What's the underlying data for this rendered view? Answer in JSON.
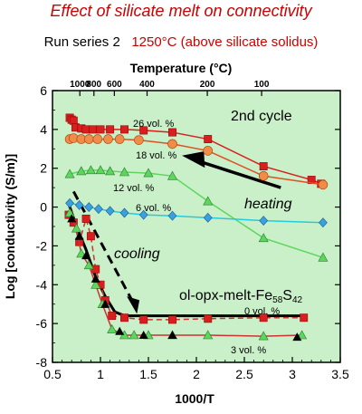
{
  "title": "Effect of silicate melt on connectivity",
  "subtitle_run": "Run series 2",
  "subtitle_temp": "1250°C (above silicate solidus)",
  "chart_data": {
    "type": "line",
    "xlabel": "1000/T",
    "ylabel": "Log [conductivity (S/m)]",
    "top_axis_label": "Temperature (°C)",
    "xlim": [
      0.5,
      3.5
    ],
    "ylim": [
      -8,
      6
    ],
    "xticks": [
      "0.5",
      "1",
      "1.5",
      "2",
      "2.5",
      "3",
      "3.5"
    ],
    "yticks": [
      "-8",
      "-6",
      "-4",
      "-2",
      "0",
      "2",
      "4",
      "6"
    ],
    "top_ticks": [
      {
        "label": "1000",
        "x": 0.785
      },
      {
        "label": "800",
        "x": 0.932
      },
      {
        "label": "600",
        "x": 1.145
      },
      {
        "label": "400",
        "x": 1.486
      },
      {
        "label": "200",
        "x": 2.114
      },
      {
        "label": "100",
        "x": 2.68
      }
    ],
    "series": [
      {
        "name": "26 vol. %",
        "marker": "square",
        "color": "#d81e1e",
        "line": "#d81e1e",
        "x": [
          0.68,
          0.7,
          0.72,
          0.74,
          0.8,
          0.85,
          0.92,
          1.0,
          1.1,
          1.25,
          1.45,
          1.75,
          2.12,
          2.7,
          3.2,
          3.3
        ],
        "y": [
          4.6,
          4.5,
          4.45,
          4.1,
          4.05,
          4.0,
          4.0,
          4.0,
          4.0,
          4.0,
          3.95,
          3.85,
          3.5,
          2.1,
          1.4,
          1.2
        ]
      },
      {
        "name": "18 vol. %",
        "marker": "circle",
        "color": "#f28a4a",
        "line": "#e05020",
        "x": [
          0.68,
          0.72,
          0.8,
          0.88,
          0.97,
          1.08,
          1.2,
          1.4,
          1.75,
          2.12,
          2.7,
          3.32
        ],
        "y": [
          3.5,
          3.55,
          3.5,
          3.5,
          3.5,
          3.5,
          3.5,
          3.45,
          3.25,
          2.9,
          1.6,
          1.15
        ]
      },
      {
        "name": "12 vol. %",
        "marker": "triangle",
        "color": "#5cd65c",
        "line": "#5cd65c",
        "x": [
          0.68,
          0.8,
          0.9,
          1.0,
          1.1,
          1.25,
          1.5,
          1.75,
          2.12,
          2.7,
          3.32
        ],
        "y": [
          1.7,
          1.85,
          1.9,
          1.9,
          1.85,
          1.8,
          1.75,
          1.6,
          0.3,
          -1.6,
          -2.6
        ]
      },
      {
        "name": "6 vol. %",
        "marker": "diamond",
        "color": "#3aa0e0",
        "line": "#22ccdd",
        "x": [
          0.68,
          0.78,
          0.88,
          0.98,
          1.1,
          1.25,
          1.45,
          1.75,
          2.12,
          2.7,
          3.32
        ],
        "y": [
          0.2,
          0.1,
          0.0,
          -0.1,
          -0.2,
          -0.3,
          -0.4,
          -0.45,
          -0.55,
          -0.7,
          -0.8
        ]
      },
      {
        "name": "0 vol. %",
        "marker": "square",
        "color": "#d81e1e",
        "line": "#cc3333",
        "dashed": true,
        "x": [
          0.67,
          0.72,
          0.78,
          0.85,
          0.9,
          0.95,
          1.0,
          1.05,
          1.12,
          1.25,
          1.45,
          1.75,
          2.12,
          2.7,
          3.12
        ],
        "y": [
          -0.4,
          -0.8,
          -1.8,
          -0.6,
          -1.5,
          -3.2,
          -4.0,
          -4.8,
          -5.6,
          -5.7,
          -5.8,
          -5.8,
          -5.75,
          -5.7,
          -5.7
        ]
      },
      {
        "name": "3 vol. %",
        "marker": "triangle",
        "color": "#5cd65c",
        "line": "#cc3333",
        "x": [
          0.68,
          0.75,
          0.8,
          0.88,
          0.95,
          1.02,
          1.12,
          1.25,
          1.35,
          1.5,
          1.75,
          2.12,
          2.7,
          3.1
        ],
        "y": [
          -0.3,
          -1.1,
          -2.4,
          -3.0,
          -4.0,
          -5.0,
          -6.3,
          -6.6,
          -6.6,
          -6.6,
          -6.6,
          -6.6,
          -6.65,
          -6.6
        ]
      }
    ],
    "thick_curve": {
      "x": [
        0.66,
        0.75,
        0.85,
        0.95,
        1.05,
        1.15,
        1.25,
        1.4,
        1.6,
        2.0,
        2.5,
        3.1
      ],
      "y": [
        0.3,
        -1.0,
        -2.2,
        -3.6,
        -4.6,
        -5.4,
        -5.6,
        -5.6,
        -5.6,
        -5.6,
        -5.6,
        -5.6
      ]
    },
    "black_triangles": {
      "x": [
        0.7,
        0.78,
        0.85,
        0.95,
        1.05,
        1.2,
        1.45,
        1.75,
        3.05
      ],
      "y": [
        -0.6,
        -1.5,
        -2.5,
        -3.7,
        -5.0,
        -6.4,
        -6.6,
        -6.6,
        -6.7
      ]
    },
    "annotations": {
      "cycle": "2nd cycle",
      "heating": "heating",
      "cooling": "cooling",
      "label_26": "26 vol. %",
      "label_18": "18 vol. %",
      "label_12": "12 vol. %",
      "label_6": "6 vol. %",
      "label_0": "0 vol. %",
      "label_3": "3 vol. %",
      "system_main": "ol-opx-melt-Fe",
      "system_sub1": "58",
      "system_mid": "S",
      "system_sub2": "42"
    },
    "colors": {
      "plot_bg": "#c9f0c9",
      "axis": "#000000",
      "title": "#cc0000"
    },
    "grid": false
  }
}
